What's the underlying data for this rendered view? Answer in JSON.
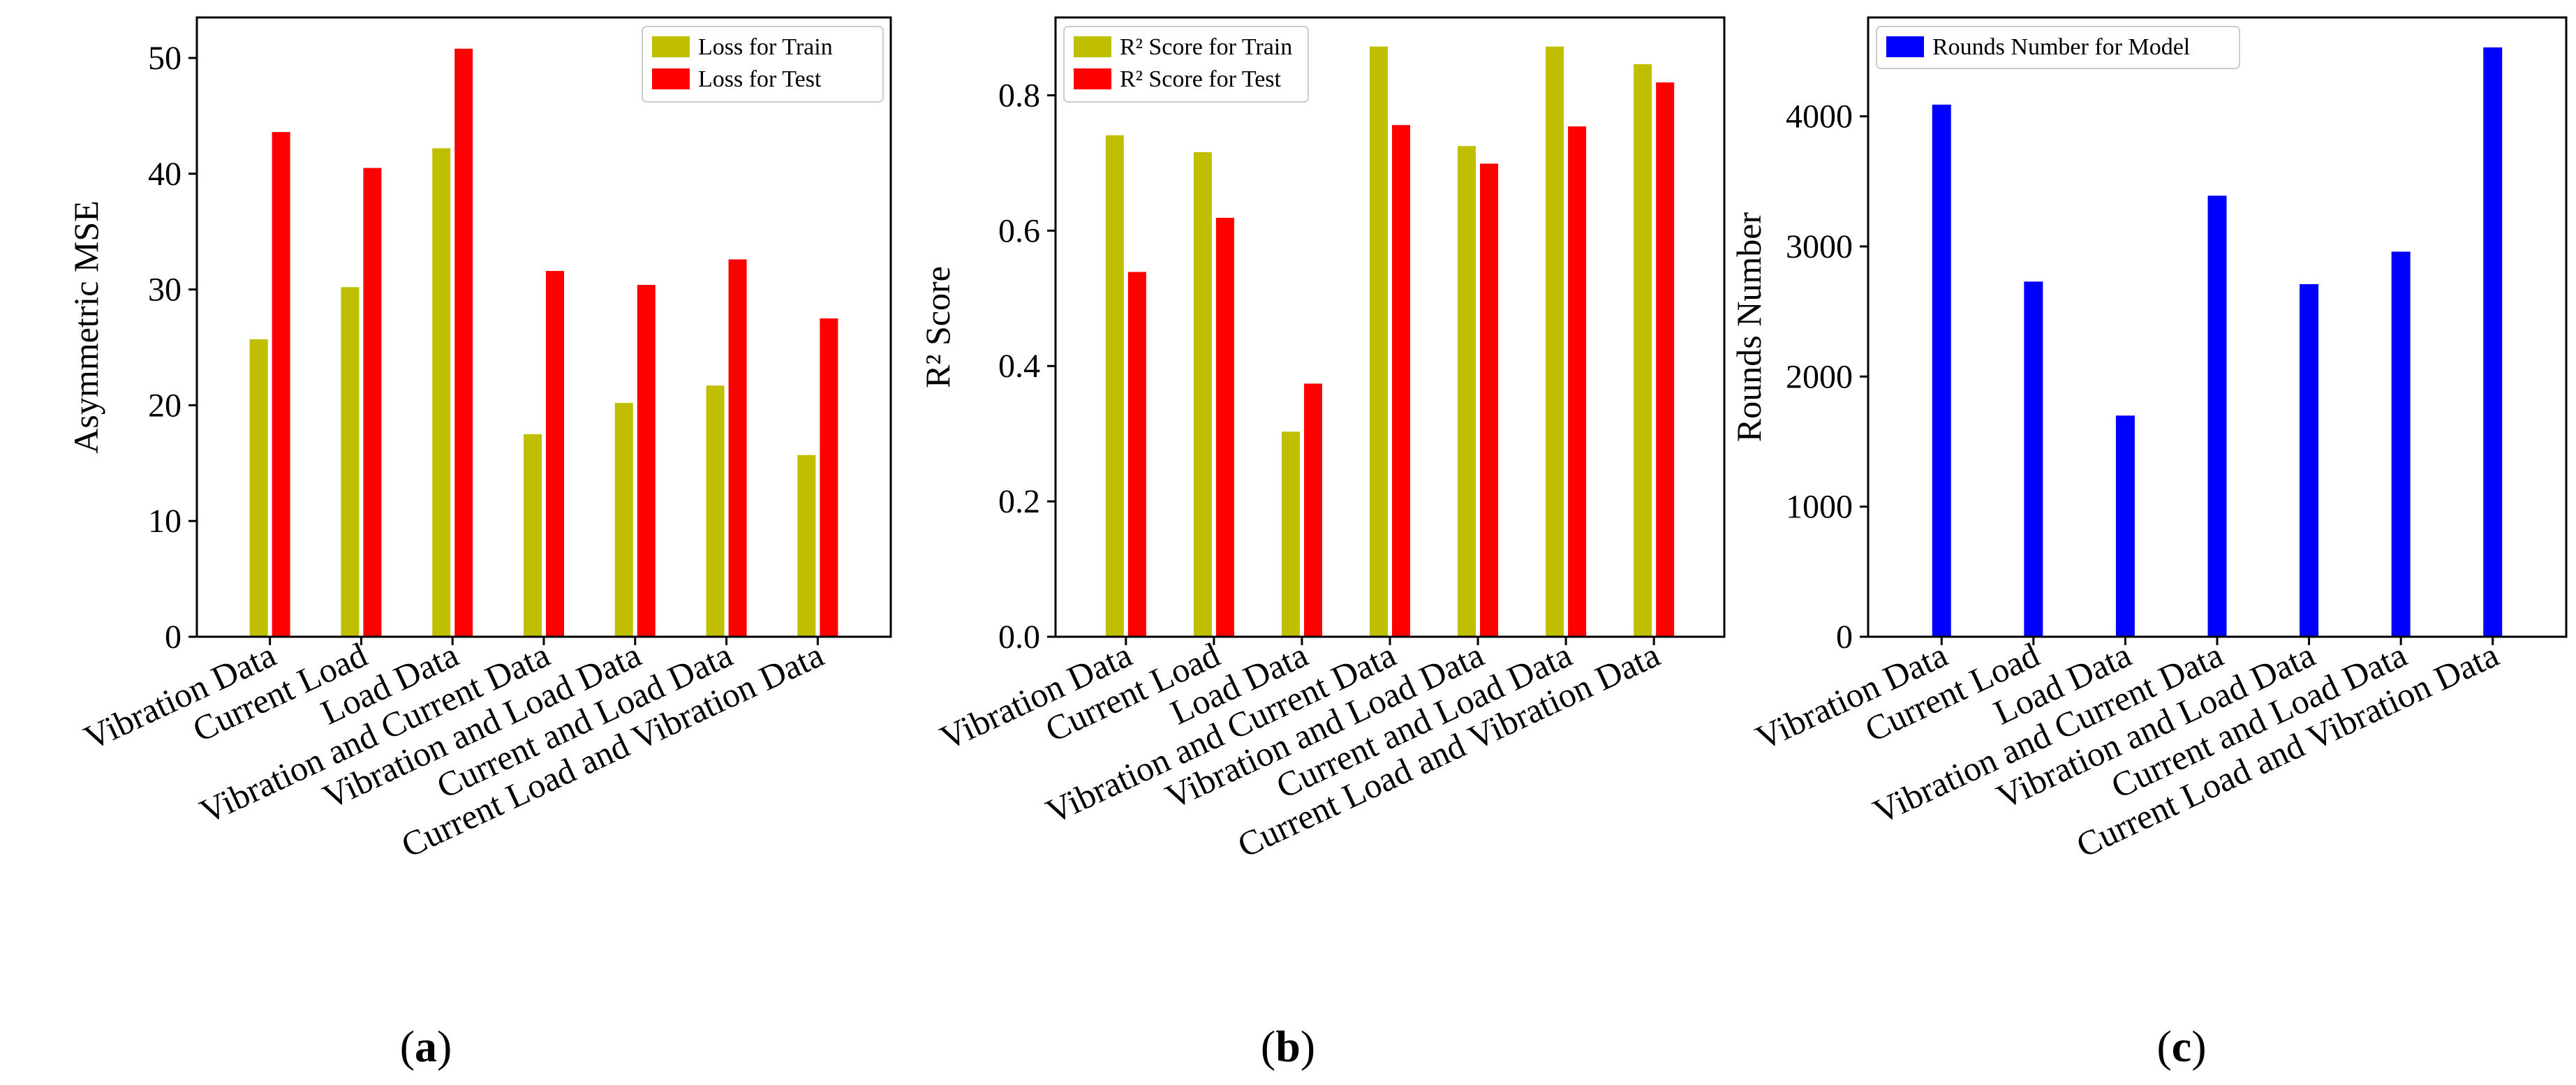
{
  "chart_data": [
    {
      "type": "bar",
      "panel": "a",
      "categories": [
        "Vibration Data",
        "Current Load",
        "Load Data",
        "Vibration and Current Data",
        "Vibration and Load Data",
        "Current and Load Data",
        "Current Load and Vibration Data"
      ],
      "series": [
        {
          "name": "Loss for Train",
          "color": "#bfbf00",
          "values": [
            25.7,
            30.2,
            42.2,
            17.5,
            20.2,
            21.7,
            15.7
          ]
        },
        {
          "name": "Loss for Test",
          "color": "#ff0000",
          "values": [
            43.6,
            40.5,
            50.8,
            31.6,
            30.4,
            32.6,
            27.5
          ]
        }
      ],
      "ylabel": "Asymmetric MSE",
      "ylim": [
        0,
        53.5
      ],
      "yticks": [
        "0",
        "10",
        "20",
        "30",
        "40",
        "50"
      ],
      "legend": "top-right",
      "grid": false
    },
    {
      "type": "bar",
      "panel": "b",
      "categories": [
        "Vibration Data",
        "Current Load",
        "Load Data",
        "Vibration and Current Data",
        "Vibration and Load Data",
        "Current and Load Data",
        "Current Load and Vibration Data"
      ],
      "series": [
        {
          "name": "R² Score for Train",
          "color": "#bfbf00",
          "values": [
            0.741,
            0.716,
            0.303,
            0.872,
            0.725,
            0.872,
            0.846
          ]
        },
        {
          "name": "R² Score for Test",
          "color": "#ff0000",
          "values": [
            0.539,
            0.619,
            0.374,
            0.756,
            0.699,
            0.754,
            0.819
          ]
        }
      ],
      "ylabel": "R² Score",
      "ylim": [
        0,
        0.915
      ],
      "yticks": [
        "0.0",
        "0.2",
        "0.4",
        "0.6",
        "0.8"
      ],
      "legend": "top-left",
      "grid": false
    },
    {
      "type": "bar",
      "panel": "c",
      "categories": [
        "Vibration Data",
        "Current Load",
        "Load Data",
        "Vibration and Current Data",
        "Vibration and Load Data",
        "Current and Load Data",
        "Current Load and Vibration Data"
      ],
      "series": [
        {
          "name": "Rounds Number for Model",
          "color": "#0000ff",
          "values": [
            4090,
            2730,
            1700,
            3390,
            2710,
            2960,
            4530
          ]
        }
      ],
      "ylabel": "Rounds Number",
      "ylim": [
        0,
        4760
      ],
      "yticks": [
        "0",
        "1000",
        "2000",
        "3000",
        "4000"
      ],
      "legend": "top-left",
      "grid": false
    }
  ],
  "captions": [
    {
      "open": "(",
      "letter": "a",
      "close": ")"
    },
    {
      "open": "(",
      "letter": "b",
      "close": ")"
    },
    {
      "open": "(",
      "letter": "c",
      "close": ")"
    }
  ]
}
